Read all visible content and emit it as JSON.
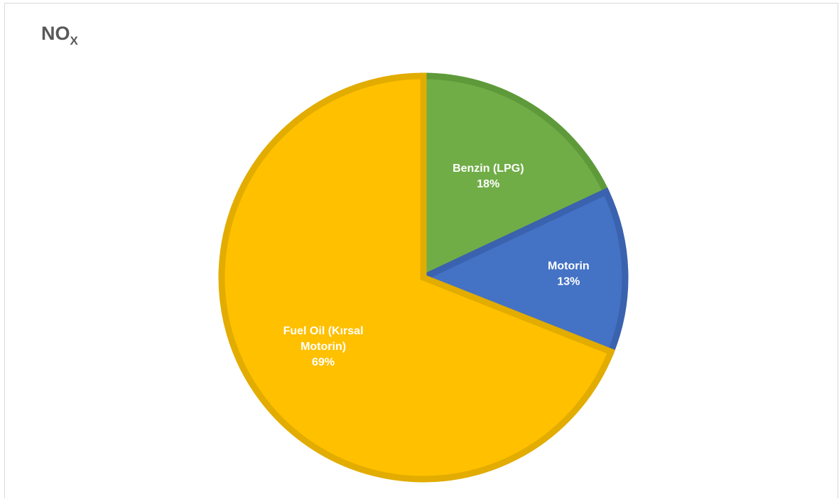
{
  "chart_data": {
    "type": "pie",
    "title": "NO",
    "title_subscript": "X",
    "start_angle_deg": 0,
    "direction": "clockwise",
    "slices": [
      {
        "label_lines": [
          "Benzin (LPG)"
        ],
        "value": 18,
        "percent_label": "18%",
        "color": "#70AD47",
        "border_color": "#5E9A3A"
      },
      {
        "label_lines": [
          "Motorin"
        ],
        "value": 13,
        "percent_label": "13%",
        "color": "#4472C4",
        "border_color": "#3A62AE"
      },
      {
        "label_lines": [
          "Fuel Oil (Kırsal",
          "Motorin)"
        ],
        "value": 69,
        "percent_label": "69%",
        "color": "#FFC000",
        "border_color": "#E2AC00"
      }
    ],
    "legend": "none",
    "grid": false
  }
}
